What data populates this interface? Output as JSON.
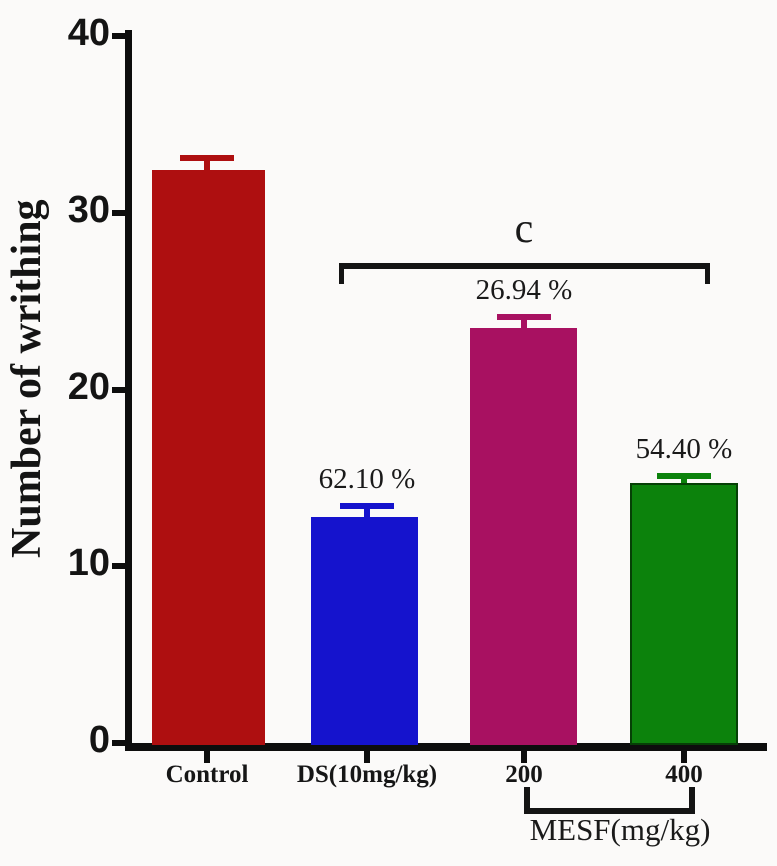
{
  "chart_data": {
    "type": "bar",
    "title": "",
    "ylabel": "Number of writhing",
    "xlabel": "",
    "ylim": [
      0,
      40
    ],
    "yticks": [
      0,
      10,
      20,
      30,
      40
    ],
    "grid": false,
    "legend": "none",
    "categories": [
      "Control",
      "DS(10mg/kg)",
      "200",
      "400"
    ],
    "values": [
      32.4,
      12.8,
      23.5,
      14.7
    ],
    "errors": [
      0.9,
      0.8,
      0.8,
      0.6
    ],
    "error_style": "upper-cap",
    "bar_colors": [
      "#ae0f10",
      "#1513cd",
      "#a81161",
      "#0c820c"
    ],
    "bar_border_colors": [
      null,
      null,
      null,
      "#064006"
    ],
    "bar_labels": [
      "",
      "62.10 %",
      "26.94 %",
      "54.40 %"
    ],
    "axis_color": "#0d0d0d",
    "annotations": {
      "sig_label": "c",
      "sig_span": [
        "DS(10mg/kg)",
        "400"
      ],
      "group_label": "MESF(mg/kg)",
      "group_span": [
        "200",
        "400"
      ]
    }
  }
}
